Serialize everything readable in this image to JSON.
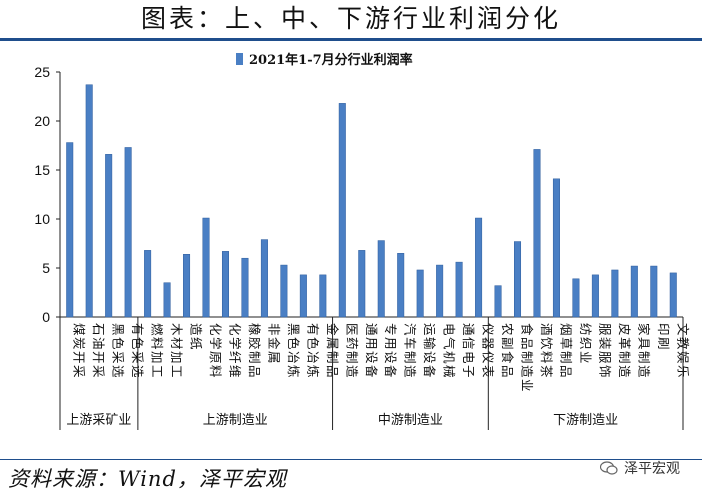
{
  "header": {
    "title": "图表：上、中、下游行业利润分化"
  },
  "footer": {
    "source": "资料来源：Wind，泽平宏观",
    "watermark": "泽平宏观"
  },
  "chart_data": {
    "type": "bar",
    "legend": {
      "label": "2021年1-7月分行业利润率",
      "position": "top-center"
    },
    "ylim": [
      0,
      25
    ],
    "yticks": [
      0,
      5,
      10,
      15,
      20,
      25
    ],
    "bar_color": "#4a7fc4",
    "categories": [
      "煤炭开采",
      "石油开采",
      "黑色采选",
      "有色采选",
      "燃料加工",
      "木材加工",
      "造纸",
      "化学原料",
      "化学纤维",
      "橡胶制品",
      "非金属",
      "黑色冶炼",
      "有色冶炼",
      "金属制品",
      "医药制造",
      "通用设备",
      "专用设备",
      "汽车制造",
      "运输设备",
      "电气机械",
      "通信电子",
      "仪器仪表",
      "农副食品",
      "食品制造业",
      "酒饮料茶",
      "烟草制品",
      "纺织业",
      "服装服饰",
      "皮革制造",
      "家具制造",
      "印刷",
      "文教娱乐"
    ],
    "values": [
      17.8,
      23.7,
      16.6,
      17.3,
      6.8,
      3.5,
      6.4,
      10.1,
      6.7,
      6.0,
      7.9,
      5.3,
      4.3,
      4.3,
      21.8,
      6.8,
      7.8,
      6.5,
      4.8,
      5.3,
      5.6,
      10.1,
      3.2,
      7.7,
      17.1,
      14.1,
      3.9,
      4.3,
      4.8,
      5.2,
      5.2,
      4.5
    ],
    "groups": [
      {
        "label": "上游采矿业",
        "start": 0,
        "end": 3
      },
      {
        "label": "上游制造业",
        "start": 4,
        "end": 13
      },
      {
        "label": "中游制造业",
        "start": 14,
        "end": 21
      },
      {
        "label": "下游制造业",
        "start": 22,
        "end": 31
      }
    ]
  }
}
